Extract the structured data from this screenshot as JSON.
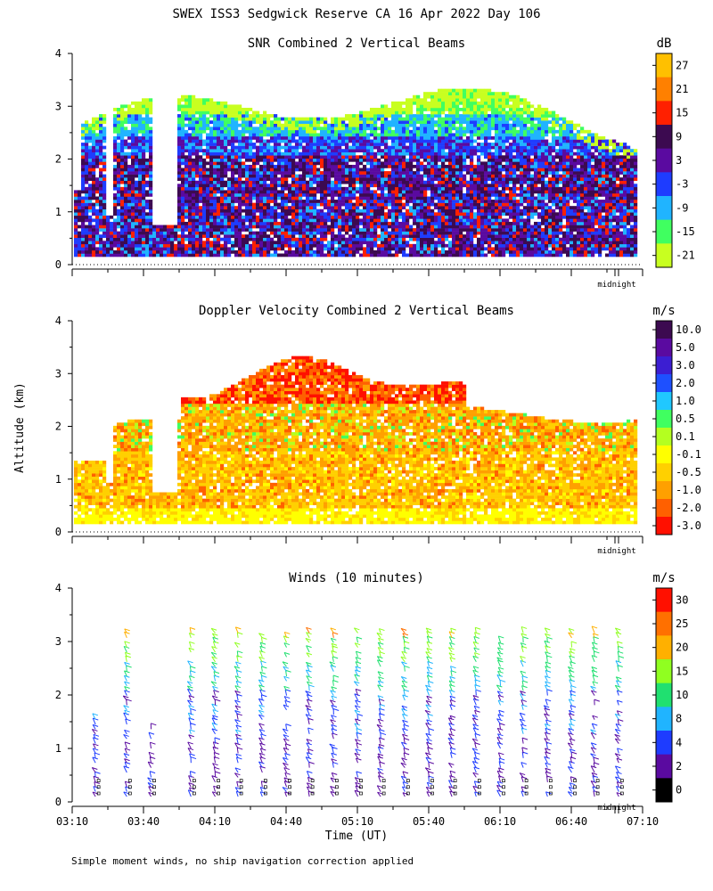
{
  "figure": {
    "title": "SWEX ISS3 Sedgwick Reserve CA  16 Apr 2022 Day 106",
    "footnote": "Simple moment winds, no ship navigation correction applied",
    "ylabel": "Altitude (km)",
    "xlabel": "Time (UT)",
    "midnight_label": "midnight"
  },
  "chart_data": [
    {
      "type": "heatmap",
      "title": "SNR Combined 2 Vertical Beams",
      "unit": "dB",
      "y_ticks": [
        "0",
        "1",
        "2",
        "3",
        "4"
      ],
      "ylim": [
        0,
        4
      ],
      "colorbar_labels": [
        "27",
        "21",
        "15",
        "9",
        "3",
        "-3",
        "-9",
        "-15",
        "-21"
      ],
      "colorbar_colors": [
        "#ffc000",
        "#ff8000",
        "#ff2000",
        "#3c0a50",
        "#5a0aa0",
        "#1e3cff",
        "#20b4ff",
        "#40ff60",
        "#c8ff20"
      ],
      "structure_by_altitude": [
        {
          "altitude_km": 0.5,
          "typical_db": 6
        },
        {
          "altitude_km": 1.0,
          "typical_db": 9
        },
        {
          "altitude_km": 1.5,
          "typical_db": 8
        },
        {
          "altitude_km": 2.0,
          "typical_db": 3
        },
        {
          "altitude_km": 2.5,
          "typical_db": -9
        },
        {
          "altitude_km": 3.0,
          "typical_db": -15
        },
        {
          "altitude_km": 3.5,
          "typical_db": -21
        }
      ]
    },
    {
      "type": "heatmap",
      "title": "Doppler Velocity Combined 2 Vertical Beams",
      "unit": "m/s",
      "y_ticks": [
        "0",
        "1",
        "2",
        "3",
        "4"
      ],
      "ylim": [
        0,
        4
      ],
      "colorbar_labels": [
        "10.0",
        "5.0",
        "3.0",
        "2.0",
        "1.0",
        "0.5",
        "0.1",
        "-0.1",
        "-0.5",
        "-1.0",
        "-2.0",
        "-3.0"
      ],
      "colorbar_colors": [
        "#3c0a50",
        "#5a0aa0",
        "#3c1ed2",
        "#1e50ff",
        "#20c8ff",
        "#40ff60",
        "#b4ff20",
        "#ffff00",
        "#ffd000",
        "#ffa000",
        "#ff6000",
        "#ff1000"
      ],
      "structure_by_altitude": [
        {
          "altitude_km": 0.3,
          "typical_ms": -0.1
        },
        {
          "altitude_km": 1.0,
          "typical_ms": -0.5
        },
        {
          "altitude_km": 2.0,
          "typical_ms": -1.0
        },
        {
          "altitude_km": 3.0,
          "typical_ms": -3.0
        }
      ]
    },
    {
      "type": "scatter",
      "title": "Winds (10 minutes)",
      "unit": "m/s",
      "y_ticks": [
        "0",
        "1",
        "2",
        "3",
        "4"
      ],
      "ylim": [
        0,
        4
      ],
      "x_ticks": [
        "03:10",
        "03:40",
        "04:10",
        "04:40",
        "05:10",
        "05:40",
        "06:10",
        "06:40",
        "07:10"
      ],
      "colorbar_labels": [
        "30",
        "25",
        "20",
        "15",
        "10",
        "8",
        "4",
        "2",
        "0"
      ],
      "colorbar_colors": [
        "#ff1000",
        "#ff7000",
        "#ffb000",
        "#90ff20",
        "#20e070",
        "#20b4ff",
        "#1e3cff",
        "#5a0aa0",
        "#000000"
      ],
      "profiles_time_hours": [
        3.33,
        3.55,
        3.72,
        4.0,
        4.17,
        4.33,
        4.5,
        4.67,
        4.83,
        5.0,
        5.17,
        5.33,
        5.5,
        5.67,
        5.83,
        6.0,
        6.17,
        6.33,
        6.5,
        6.67,
        6.83,
        7.0
      ]
    }
  ]
}
